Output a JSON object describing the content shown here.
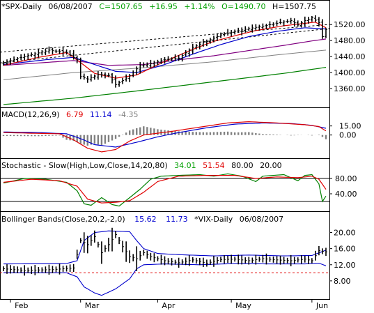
{
  "chart_data": [
    {
      "type": "ohlc_bars",
      "symbol": "*SPX-Daily",
      "date": "06/08/2007",
      "quote": {
        "close": "C=1507.65",
        "change": "+16.95",
        "pct": "+1.14%",
        "open": "O=1490.70",
        "high": "H=1507.75"
      },
      "ylim": [
        1320,
        1550
      ],
      "yticks": [
        "1520.00",
        "1480.00",
        "1440.00",
        "1400.00",
        "1360.00"
      ],
      "ytick_values": [
        1520,
        1480,
        1440,
        1400,
        1360
      ],
      "xticks": [
        "Feb",
        "Mar",
        "Apr",
        "May",
        "Jun"
      ],
      "xtick_index": [
        2,
        22,
        44,
        65,
        88
      ],
      "n_bars": 93,
      "close_anchors": [
        [
          0,
          1424
        ],
        [
          6,
          1440
        ],
        [
          13,
          1456
        ],
        [
          18,
          1450
        ],
        [
          21,
          1432
        ],
        [
          22,
          1390
        ],
        [
          24,
          1384
        ],
        [
          27,
          1395
        ],
        [
          30,
          1393
        ],
        [
          32,
          1370
        ],
        [
          34,
          1380
        ],
        [
          36,
          1392
        ],
        [
          39,
          1418
        ],
        [
          42,
          1422
        ],
        [
          46,
          1432
        ],
        [
          50,
          1436
        ],
        [
          54,
          1463
        ],
        [
          58,
          1478
        ],
        [
          62,
          1494
        ],
        [
          66,
          1503
        ],
        [
          70,
          1510
        ],
        [
          74,
          1516
        ],
        [
          78,
          1523
        ],
        [
          82,
          1530
        ],
        [
          84,
          1519
        ],
        [
          86,
          1530
        ],
        [
          88,
          1537
        ],
        [
          90,
          1525
        ],
        [
          91,
          1490
        ],
        [
          92,
          1507.65
        ]
      ],
      "ma_red": [
        [
          0,
          1418
        ],
        [
          10,
          1438
        ],
        [
          18,
          1450
        ],
        [
          22,
          1425
        ],
        [
          26,
          1398
        ],
        [
          32,
          1386
        ],
        [
          38,
          1394
        ],
        [
          46,
          1428
        ],
        [
          54,
          1458
        ],
        [
          60,
          1478
        ],
        [
          66,
          1492
        ],
        [
          72,
          1505
        ],
        [
          80,
          1517
        ],
        [
          86,
          1523
        ],
        [
          89,
          1526
        ],
        [
          92,
          1512
        ]
      ],
      "ma_blue": [
        [
          0,
          1420
        ],
        [
          12,
          1432
        ],
        [
          20,
          1438
        ],
        [
          26,
          1420
        ],
        [
          32,
          1403
        ],
        [
          38,
          1400
        ],
        [
          46,
          1420
        ],
        [
          54,
          1446
        ],
        [
          62,
          1470
        ],
        [
          70,
          1490
        ],
        [
          78,
          1503
        ],
        [
          86,
          1512
        ],
        [
          92,
          1509
        ]
      ],
      "ma_purple": [
        [
          0,
          1418
        ],
        [
          20,
          1430
        ],
        [
          30,
          1418
        ],
        [
          40,
          1420
        ],
        [
          50,
          1432
        ],
        [
          60,
          1442
        ],
        [
          70,
          1455
        ],
        [
          80,
          1468
        ],
        [
          88,
          1479
        ],
        [
          92,
          1484
        ]
      ],
      "ma_gray": [
        [
          0,
          1382
        ],
        [
          20,
          1400
        ],
        [
          40,
          1412
        ],
        [
          60,
          1427
        ],
        [
          80,
          1446
        ],
        [
          92,
          1456
        ]
      ],
      "ma_green": [
        [
          0,
          1320
        ],
        [
          20,
          1336
        ],
        [
          40,
          1356
        ],
        [
          60,
          1377
        ],
        [
          80,
          1398
        ],
        [
          92,
          1413
        ]
      ],
      "trendline_upper": [
        [
          0,
          1451
        ],
        [
          92,
          1515
        ]
      ],
      "trendline_lower": [
        [
          0,
          1424
        ],
        [
          92,
          1510
        ]
      ]
    },
    {
      "type": "macd",
      "label": "MACD(12,26,9)",
      "macd_value": "6.79",
      "signal_value": "11.14",
      "hist_value": "-4.35",
      "ylim": [
        -35,
        25
      ],
      "yticks": [
        "15.00",
        "0.00"
      ],
      "ytick_values": [
        15,
        0
      ],
      "macd_red": [
        [
          0,
          4
        ],
        [
          8,
          3
        ],
        [
          16,
          2
        ],
        [
          20,
          -8
        ],
        [
          24,
          -22
        ],
        [
          28,
          -28
        ],
        [
          32,
          -24
        ],
        [
          36,
          -10
        ],
        [
          40,
          0
        ],
        [
          48,
          6
        ],
        [
          56,
          13
        ],
        [
          64,
          20
        ],
        [
          70,
          22
        ],
        [
          78,
          20
        ],
        [
          86,
          17
        ],
        [
          90,
          14
        ],
        [
          92,
          6.79
        ]
      ],
      "signal_blue": [
        [
          0,
          5
        ],
        [
          10,
          4
        ],
        [
          18,
          2
        ],
        [
          22,
          -6
        ],
        [
          26,
          -16
        ],
        [
          32,
          -20
        ],
        [
          38,
          -12
        ],
        [
          44,
          -3
        ],
        [
          50,
          4
        ],
        [
          58,
          12
        ],
        [
          66,
          18
        ],
        [
          74,
          20
        ],
        [
          82,
          19
        ],
        [
          88,
          16
        ],
        [
          92,
          11.14
        ]
      ]
    },
    {
      "type": "stochastic",
      "label": "Stochastic - Slow(High,Low,Close,14,20,80)",
      "k_value": "34.01",
      "d_value": "51.54",
      "upper_value": "80.00",
      "lower_value": "20.00",
      "ylim": [
        0,
        100
      ],
      "yticks": [
        "80.00",
        "40.00"
      ],
      "ytick_values": [
        80,
        40
      ],
      "green_k": [
        [
          0,
          68
        ],
        [
          6,
          80
        ],
        [
          12,
          78
        ],
        [
          18,
          70
        ],
        [
          21,
          48
        ],
        [
          23,
          14
        ],
        [
          25,
          10
        ],
        [
          28,
          30
        ],
        [
          31,
          12
        ],
        [
          33,
          8
        ],
        [
          36,
          30
        ],
        [
          39,
          52
        ],
        [
          42,
          78
        ],
        [
          45,
          86
        ],
        [
          50,
          88
        ],
        [
          56,
          90
        ],
        [
          60,
          86
        ],
        [
          64,
          92
        ],
        [
          68,
          86
        ],
        [
          72,
          72
        ],
        [
          74,
          86
        ],
        [
          80,
          90
        ],
        [
          84,
          74
        ],
        [
          86,
          88
        ],
        [
          88,
          90
        ],
        [
          90,
          66
        ],
        [
          91,
          20
        ],
        [
          92,
          34.01
        ]
      ],
      "red_d": [
        [
          0,
          70
        ],
        [
          8,
          78
        ],
        [
          16,
          74
        ],
        [
          21,
          60
        ],
        [
          24,
          26
        ],
        [
          28,
          16
        ],
        [
          32,
          18
        ],
        [
          36,
          22
        ],
        [
          40,
          44
        ],
        [
          44,
          72
        ],
        [
          50,
          86
        ],
        [
          58,
          88
        ],
        [
          66,
          88
        ],
        [
          72,
          80
        ],
        [
          78,
          84
        ],
        [
          84,
          82
        ],
        [
          88,
          86
        ],
        [
          90,
          78
        ],
        [
          92,
          51.54
        ]
      ]
    },
    {
      "type": "bollinger",
      "label": "Bollinger Bands(Close,20,2,-2,0)",
      "upper_value": "15.62",
      "lower_value": "11.73",
      "series_label": "*VIX-Daily",
      "date": "06/08/2007",
      "ylim": [
        4,
        22
      ],
      "yticks": [
        "20.00",
        "16.00",
        "12.00",
        "8.00"
      ],
      "ytick_values": [
        20,
        16,
        12,
        8
      ],
      "ref_line": 10,
      "vix_anchors": [
        [
          0,
          11
        ],
        [
          6,
          10.6
        ],
        [
          14,
          10.8
        ],
        [
          20,
          11.2
        ],
        [
          22,
          18
        ],
        [
          24,
          17
        ],
        [
          26,
          19
        ],
        [
          28,
          15
        ],
        [
          30,
          17
        ],
        [
          32,
          19.5
        ],
        [
          34,
          16.5
        ],
        [
          36,
          14
        ],
        [
          38,
          13.5
        ],
        [
          40,
          15
        ],
        [
          42,
          14
        ],
        [
          46,
          13
        ],
        [
          50,
          12.5
        ],
        [
          54,
          13.2
        ],
        [
          58,
          12.4
        ],
        [
          62,
          13.3
        ],
        [
          66,
          13.4
        ],
        [
          70,
          13.0
        ],
        [
          74,
          13.5
        ],
        [
          78,
          13.2
        ],
        [
          82,
          13.0
        ],
        [
          86,
          13.4
        ],
        [
          88,
          13.0
        ],
        [
          90,
          15.5
        ],
        [
          92,
          15.2
        ]
      ],
      "upper_band": [
        [
          0,
          12.2
        ],
        [
          18,
          12.3
        ],
        [
          21,
          13
        ],
        [
          23,
          18
        ],
        [
          26,
          20
        ],
        [
          30,
          20.4
        ],
        [
          36,
          20.2
        ],
        [
          38,
          18
        ],
        [
          40,
          16
        ],
        [
          44,
          14.8
        ],
        [
          50,
          14.5
        ],
        [
          60,
          14.2
        ],
        [
          70,
          14.4
        ],
        [
          80,
          14.2
        ],
        [
          88,
          14.3
        ],
        [
          92,
          15.62
        ]
      ],
      "lower_band": [
        [
          0,
          10
        ],
        [
          18,
          10
        ],
        [
          21,
          9
        ],
        [
          23,
          6.5
        ],
        [
          26,
          5
        ],
        [
          28,
          4.4
        ],
        [
          32,
          6
        ],
        [
          36,
          8.5
        ],
        [
          38,
          11
        ],
        [
          40,
          12
        ],
        [
          46,
          12.2
        ],
        [
          56,
          12
        ],
        [
          66,
          12.3
        ],
        [
          76,
          12.2
        ],
        [
          86,
          12.2
        ],
        [
          90,
          12.4
        ],
        [
          92,
          11.73
        ]
      ]
    }
  ]
}
